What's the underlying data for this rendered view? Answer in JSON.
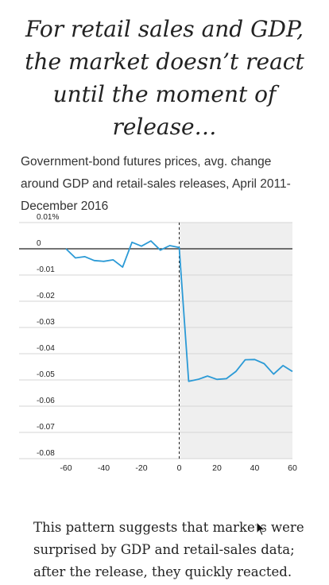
{
  "headline": "For retail sales and GDP, the market doesn’t react until the moment of release…",
  "chart_data": {
    "type": "line",
    "subtitle": "Government-bond futures prices, avg. change around GDP and retail-sales releases, April 2011-December 2016",
    "xlabel": "",
    "ylabel": "",
    "x_ticks": [
      -60,
      -40,
      -20,
      0,
      20,
      40,
      60
    ],
    "y_ticks": [
      {
        "v": 0.01,
        "label": "0.01%"
      },
      {
        "v": 0,
        "label": "0"
      },
      {
        "v": -0.01,
        "label": "-0.01"
      },
      {
        "v": -0.02,
        "label": "-0.02"
      },
      {
        "v": -0.03,
        "label": "-0.03"
      },
      {
        "v": -0.04,
        "label": "-0.04"
      },
      {
        "v": -0.05,
        "label": "-0.05"
      },
      {
        "v": -0.06,
        "label": "-0.06"
      },
      {
        "v": -0.07,
        "label": "-0.07"
      },
      {
        "v": -0.08,
        "label": "-0.08"
      }
    ],
    "xlim": [
      -60,
      60
    ],
    "ylim": [
      -0.08,
      0.01
    ],
    "release_at": 0,
    "shaded_after_release": true,
    "line_color": "#2b9ad6",
    "series": [
      {
        "x": [
          -60,
          -55,
          -50,
          -45,
          -40,
          -35,
          -30,
          -25,
          -20,
          -15,
          -10,
          -5,
          0,
          5,
          10,
          15,
          20,
          25,
          30,
          35,
          40,
          45,
          50,
          55,
          60
        ],
        "values": [
          0,
          -0.0035,
          -0.003,
          -0.0045,
          -0.0048,
          -0.0042,
          -0.007,
          0.0025,
          0.001,
          0.003,
          -0.0005,
          0.0012,
          0.0005,
          -0.0505,
          -0.0498,
          -0.0485,
          -0.0498,
          -0.0495,
          -0.0468,
          -0.0423,
          -0.0422,
          -0.0438,
          -0.0478,
          -0.0445,
          -0.0468
        ]
      }
    ]
  },
  "body_text": "This pattern suggests that markets were surprised by GDP and retail-sales data; after the release, they quickly reacted."
}
